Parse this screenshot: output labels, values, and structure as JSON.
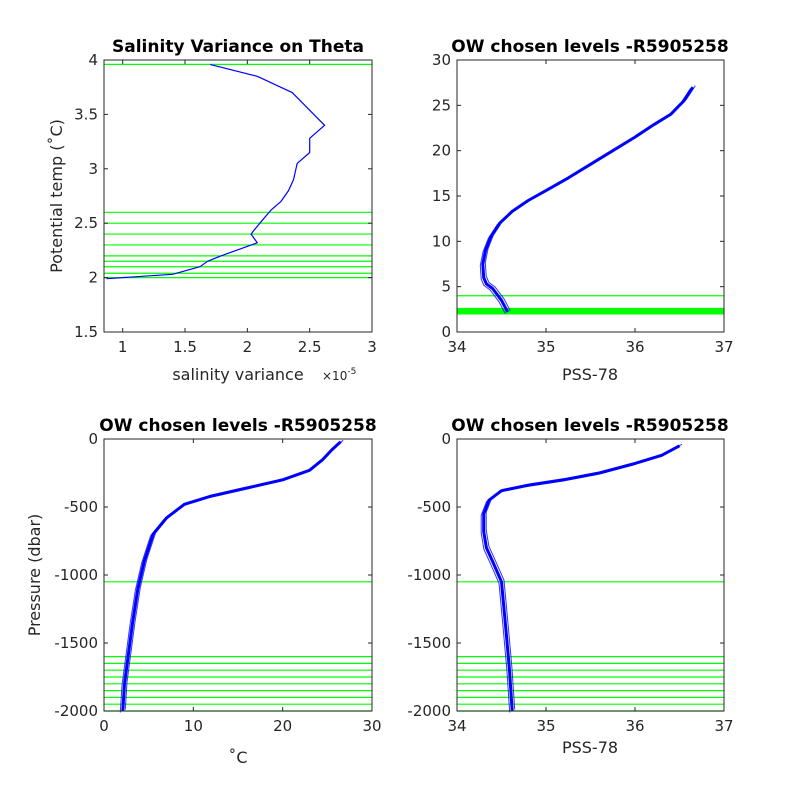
{
  "chart_data": [
    {
      "type": "line",
      "title": "Salinity Variance on Theta",
      "xlabel": "salinity variance",
      "xlabel_exponent": "×10",
      "xlabel_exponent_power": "-5",
      "ylabel": "Potential temp (˚C)",
      "xlim": [
        0.85,
        3.0
      ],
      "ylim": [
        1.5,
        4.0
      ],
      "xticks": [
        1,
        1.5,
        2,
        2.5,
        3
      ],
      "yticks": [
        1.5,
        2,
        2.5,
        3,
        3.5,
        4
      ],
      "xtick_labels": [
        "1",
        "1.5",
        "2",
        "2.5",
        "3"
      ],
      "ytick_labels": [
        "1.5",
        "2",
        "2.5",
        "3",
        "3.5",
        "4"
      ],
      "series": [
        {
          "color": "#0000ff",
          "x": [
            1.7,
            2.08,
            2.36,
            2.62,
            2.5,
            2.5,
            2.4,
            2.37,
            2.33,
            2.27,
            2.19,
            2.1,
            2.05,
            2.03,
            2.08,
            1.79,
            1.68,
            1.62,
            1.4,
            0.87
          ],
          "y": [
            3.96,
            3.85,
            3.7,
            3.4,
            3.28,
            3.15,
            3.05,
            2.9,
            2.8,
            2.7,
            2.62,
            2.5,
            2.43,
            2.4,
            2.32,
            2.2,
            2.15,
            2.1,
            2.03,
            1.99
          ]
        }
      ],
      "hlines": {
        "color": "#00ff00",
        "y": [
          3.96,
          2.6,
          2.5,
          2.4,
          2.3,
          2.2,
          2.15,
          2.1,
          2.04,
          2.0
        ]
      }
    },
    {
      "type": "line",
      "title": "OW chosen levels -R5905258",
      "xlabel": "PSS-78",
      "ylabel": "",
      "xlim": [
        34,
        37
      ],
      "ylim": [
        0,
        30
      ],
      "xticks": [
        34,
        35,
        36,
        37
      ],
      "yticks": [
        0,
        5,
        10,
        15,
        20,
        25,
        30
      ],
      "xtick_labels": [
        "34",
        "35",
        "36",
        "37"
      ],
      "ytick_labels": [
        "0",
        "5",
        "10",
        "15",
        "20",
        "25",
        "30"
      ],
      "series": [
        {
          "color": "#0000ff",
          "x": [
            34.57,
            34.5,
            34.4,
            34.33,
            34.3,
            34.29,
            34.32,
            34.38,
            34.48,
            34.62,
            34.8,
            35.0,
            35.25,
            35.5,
            35.75,
            36.0,
            36.2,
            36.4,
            36.55,
            36.65
          ],
          "y": [
            2.2,
            3.5,
            4.8,
            5.3,
            6.0,
            7.5,
            9.0,
            10.5,
            12.0,
            13.3,
            14.5,
            15.6,
            17.0,
            18.5,
            20.0,
            21.5,
            22.8,
            24.0,
            25.5,
            27.0
          ]
        }
      ],
      "hlines": {
        "color": "#00ff00",
        "y": [
          4.0,
          2.6,
          2.5,
          2.4,
          2.3,
          2.2,
          2.15,
          2.1,
          2.04,
          2.0
        ]
      }
    },
    {
      "type": "line",
      "title": "OW chosen levels -R5905258",
      "xlabel": "˚C",
      "ylabel": "Pressure (dbar)",
      "xlim": [
        0,
        30
      ],
      "ylim": [
        -2000,
        0
      ],
      "xticks": [
        0,
        10,
        20,
        30
      ],
      "yticks": [
        -2000,
        -1500,
        -1000,
        -500,
        0
      ],
      "xtick_labels": [
        "0",
        "10",
        "20",
        "30"
      ],
      "ytick_labels": [
        "-2000",
        "-1500",
        "-1000",
        "-500",
        "0"
      ],
      "series": [
        {
          "color": "#0000ff",
          "x": [
            2.1,
            2.3,
            2.7,
            3.2,
            3.8,
            4.5,
            5.5,
            7.0,
            9.0,
            12.0,
            16.0,
            20.0,
            23.0,
            24.5,
            25.5,
            26.5
          ],
          "y": [
            -2000,
            -1800,
            -1600,
            -1350,
            -1100,
            -900,
            -700,
            -580,
            -480,
            -420,
            -360,
            -300,
            -230,
            -150,
            -80,
            -20
          ]
        }
      ],
      "hlines": {
        "color": "#00ff00",
        "y": [
          -1050,
          -1600,
          -1650,
          -1700,
          -1750,
          -1800,
          -1850,
          -1900,
          -1950,
          -2000
        ]
      }
    },
    {
      "type": "line",
      "title": "OW chosen levels -R5905258",
      "xlabel": "PSS-78",
      "ylabel": "",
      "xlim": [
        34,
        37
      ],
      "ylim": [
        -2000,
        0
      ],
      "xticks": [
        34,
        35,
        36,
        37
      ],
      "yticks": [
        -2000,
        -1500,
        -1000,
        -500,
        0
      ],
      "xtick_labels": [
        "34",
        "35",
        "36",
        "37"
      ],
      "ytick_labels": [
        "-2000",
        "-1500",
        "-1000",
        "-500",
        "0"
      ],
      "series": [
        {
          "color": "#0000ff",
          "x": [
            34.62,
            34.59,
            34.55,
            34.5,
            34.4,
            34.33,
            34.3,
            34.3,
            34.36,
            34.5,
            34.8,
            35.2,
            35.6,
            36.0,
            36.3,
            36.5
          ],
          "y": [
            -2000,
            -1700,
            -1400,
            -1050,
            -900,
            -800,
            -680,
            -550,
            -450,
            -380,
            -340,
            -300,
            -250,
            -180,
            -120,
            -50
          ]
        }
      ],
      "hlines": {
        "color": "#00ff00",
        "y": [
          -1050,
          -1600,
          -1650,
          -1700,
          -1750,
          -1800,
          -1850,
          -1900,
          -1950,
          -2000
        ]
      }
    }
  ]
}
